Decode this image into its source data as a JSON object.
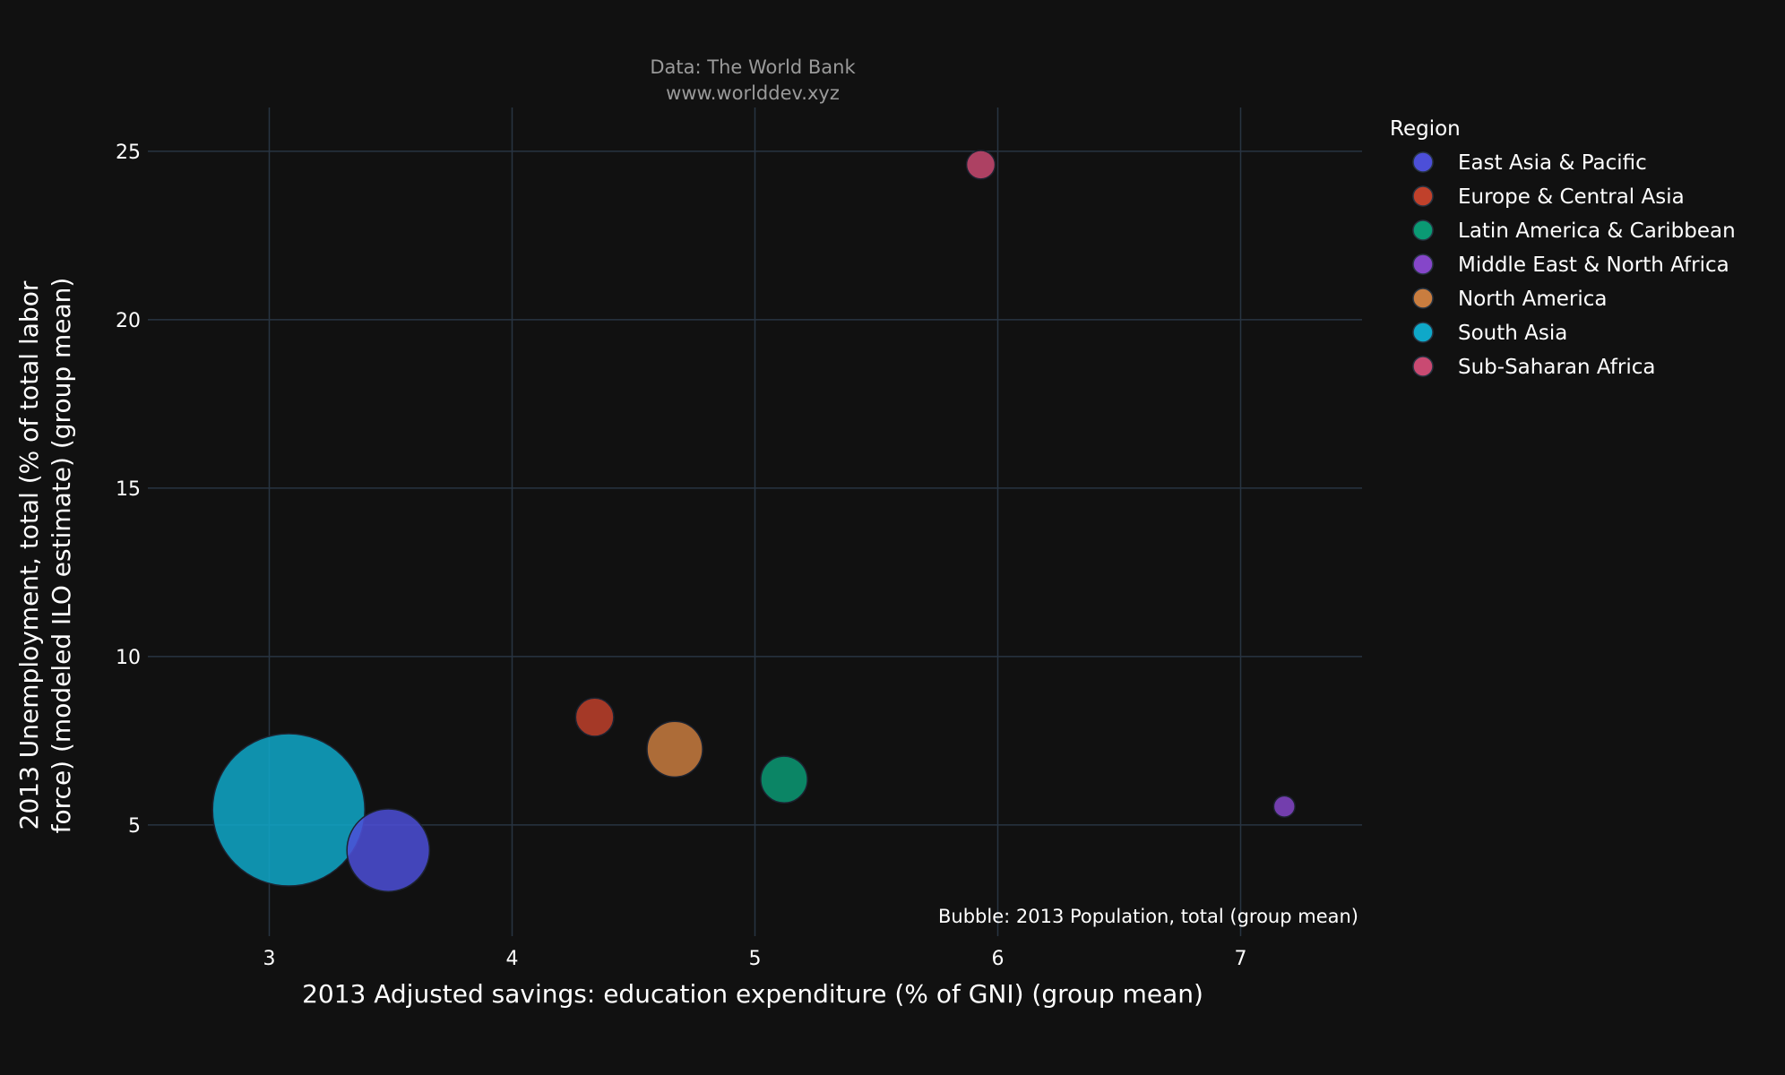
{
  "chart_data": {
    "type": "scatter",
    "title": "Data: The World Bank",
    "subtitle": "www.worlddev.xyz",
    "xlabel": "2013 Adjusted savings: education expenditure (% of GNI) (group mean)",
    "ylabel_lines": [
      "2013 Unemployment, total (% of total labor",
      "force) (modeled ILO estimate) (group mean)"
    ],
    "annotation": "Bubble: 2013 Population, total (group mean)",
    "xlim": [
      2.5,
      7.5
    ],
    "ylim": [
      1.7,
      26.3
    ],
    "x_ticks": [
      3,
      4,
      5,
      6,
      7
    ],
    "y_ticks": [
      5,
      10,
      15,
      20,
      25
    ],
    "grid": true,
    "legend_title": "Region",
    "legend_position": "top-right",
    "series": [
      {
        "name": "East Asia & Pacific",
        "color": "#4c4fd8",
        "x": 3.49,
        "y": 4.25,
        "size_value": 15
      },
      {
        "name": "Europe & Central Asia",
        "color": "#c0412b",
        "x": 4.34,
        "y": 8.2,
        "size_value": 3.2
      },
      {
        "name": "Latin America & Caribbean",
        "color": "#0a9a74",
        "x": 5.12,
        "y": 6.35,
        "size_value": 4.8
      },
      {
        "name": "Middle East & North Africa",
        "color": "#8546c9",
        "x": 7.18,
        "y": 5.55,
        "size_value": 1
      },
      {
        "name": "North America",
        "color": "#c97d3f",
        "x": 4.67,
        "y": 7.25,
        "size_value": 6.8
      },
      {
        "name": "South Asia",
        "color": "#0fa8c9",
        "x": 3.08,
        "y": 5.45,
        "size_value": 51
      },
      {
        "name": "Sub-Saharan Africa",
        "color": "#c94a72",
        "x": 5.93,
        "y": 24.6,
        "size_value": 1.8
      }
    ]
  }
}
